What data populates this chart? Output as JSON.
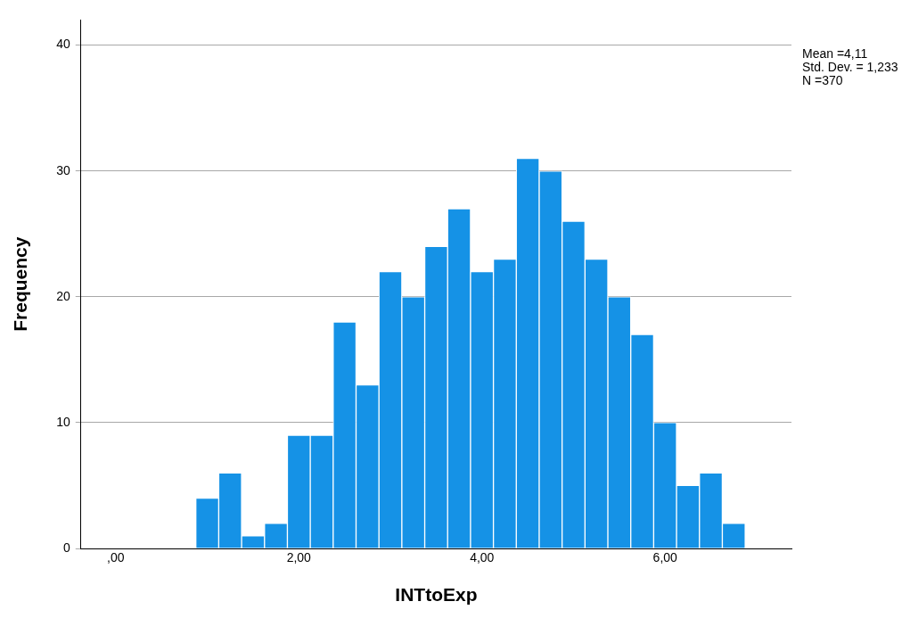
{
  "chart_data": {
    "type": "histogram",
    "xlabel": "INTtoExp",
    "ylabel": "Frequency",
    "bins": [
      0.875,
      1.125,
      1.375,
      1.625,
      1.875,
      2.125,
      2.375,
      2.625,
      2.875,
      3.125,
      3.375,
      3.625,
      3.875,
      4.125,
      4.375,
      4.625,
      4.875,
      5.125,
      5.375,
      5.625,
      5.875,
      6.125,
      6.375,
      6.625,
      6.875
    ],
    "values": [
      4,
      6,
      1,
      2,
      9,
      9,
      18,
      13,
      22,
      20,
      24,
      27,
      22,
      23,
      31,
      30,
      26,
      23,
      20,
      17,
      10,
      5,
      6,
      2
    ],
    "color": "#1592e6",
    "xlim": [
      -0.38,
      7.38
    ],
    "xticks": [
      {
        "value": 0,
        "label": ",00"
      },
      {
        "value": 2,
        "label": "2,00"
      },
      {
        "value": 4,
        "label": "4,00"
      },
      {
        "value": 6,
        "label": "6,00"
      }
    ],
    "ylim": [
      0,
      42
    ],
    "yticks": [
      0,
      10,
      20,
      30,
      40
    ],
    "grid": "y",
    "annotations": [
      "Mean =4,11",
      "Std. Dev. = 1,233",
      "N =370"
    ]
  }
}
